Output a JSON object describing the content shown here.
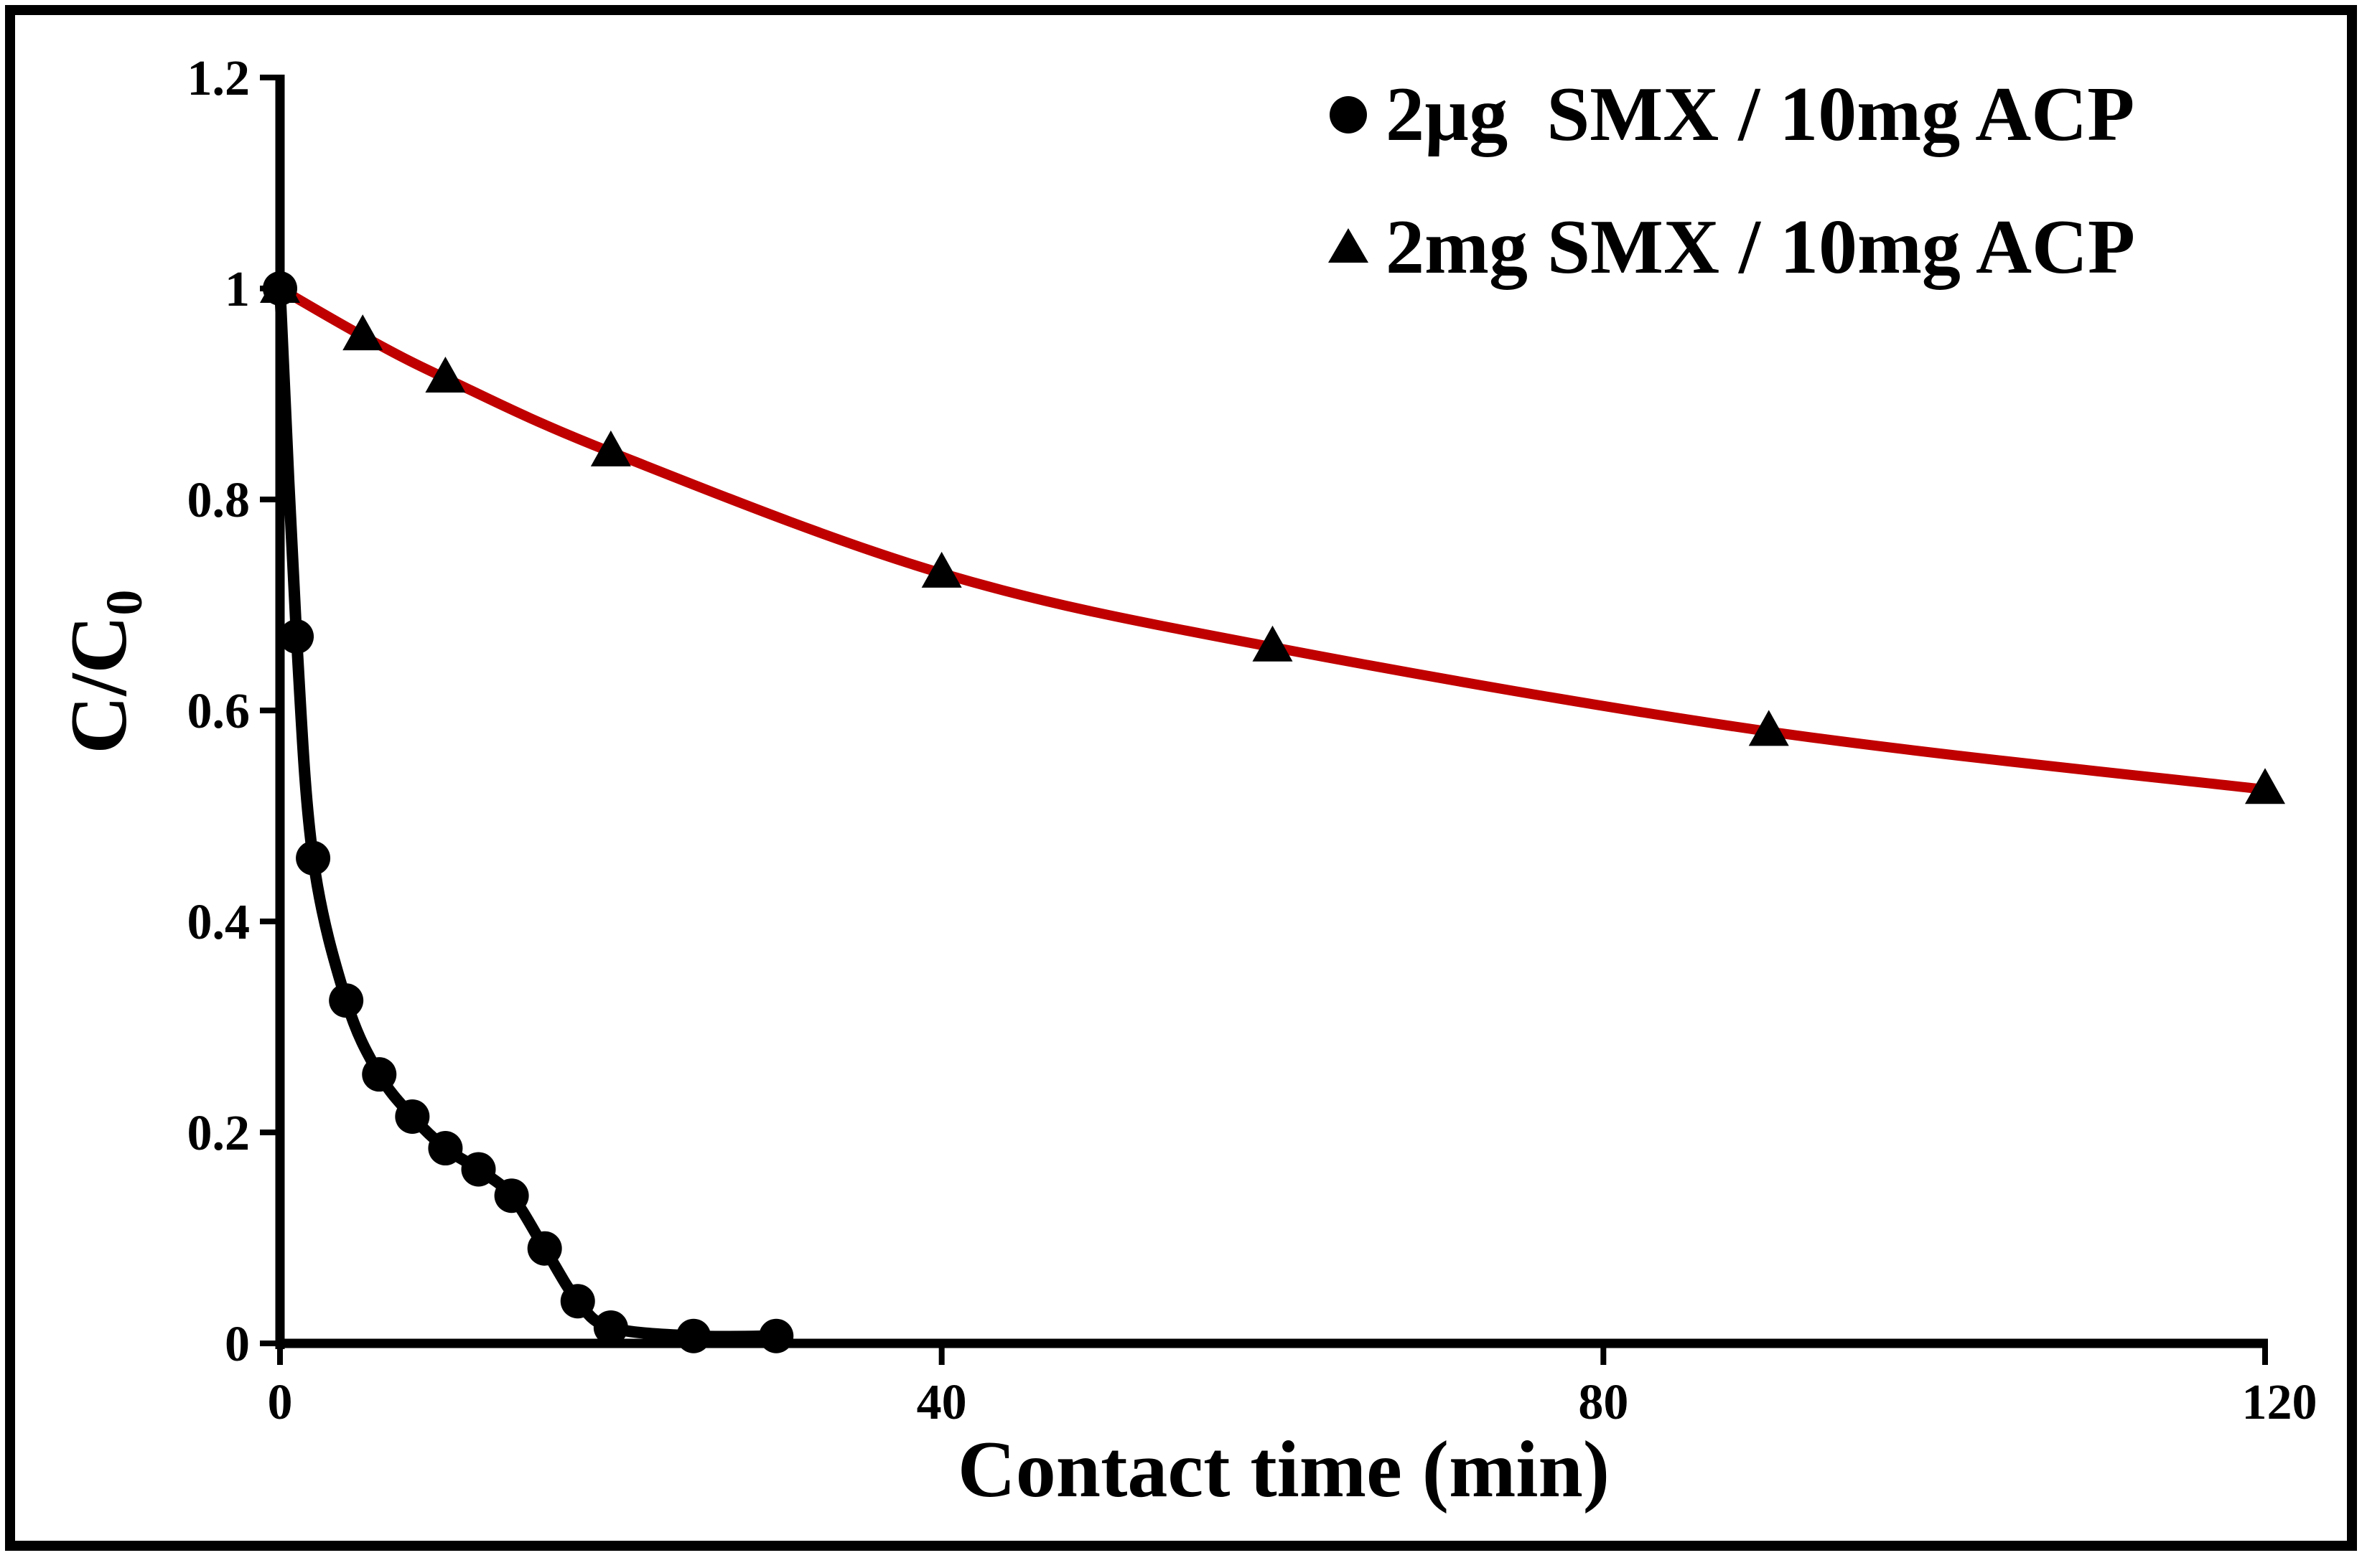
{
  "chart_data": {
    "type": "scatter",
    "xlabel": "Contact time (min)",
    "ylabel_main": "C/C",
    "ylabel_sub": "0",
    "xlim": [
      0,
      120
    ],
    "ylim": [
      0,
      1.2
    ],
    "x_ticks": [
      0,
      40,
      80,
      120
    ],
    "y_ticks": [
      0,
      0.2,
      0.4,
      0.6,
      0.8,
      1.0,
      1.2
    ],
    "x_tick_labels": [
      "0",
      "40",
      "80",
      "120"
    ],
    "y_tick_labels": [
      "0",
      "0.2",
      "0.4",
      "0.6",
      "0.8",
      "1",
      "1.2"
    ],
    "legend_position": "top-right",
    "grid": false,
    "series": [
      {
        "name": "2µg  SMX / 10mg ACP",
        "marker": "circle",
        "line_color": "#000000",
        "x": [
          0,
          1,
          2,
          4,
          6,
          8,
          10,
          12,
          14,
          16,
          18,
          20,
          25,
          30
        ],
        "y": [
          1.0,
          0.67,
          0.46,
          0.325,
          0.255,
          0.215,
          0.185,
          0.165,
          0.14,
          0.09,
          0.04,
          0.015,
          0.007,
          0.007
        ]
      },
      {
        "name": "2mg SMX / 10mg ACP",
        "marker": "triangle",
        "line_color": "#c00000",
        "x": [
          0,
          5,
          10,
          20,
          40,
          60,
          90,
          120
        ],
        "y": [
          1.0,
          0.955,
          0.915,
          0.845,
          0.73,
          0.66,
          0.58,
          0.525
        ]
      }
    ]
  }
}
